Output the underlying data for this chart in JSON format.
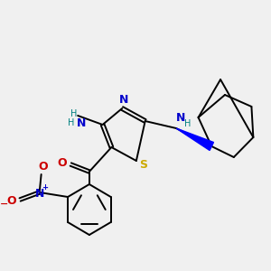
{
  "bg_color": "#f0f0f0",
  "fig_size": [
    3.0,
    3.0
  ],
  "dpi": 100,
  "atom_colors": {
    "N": "#0000cc",
    "S": "#ccaa00",
    "O": "#cc0000",
    "C": "#000000",
    "H": "#008080"
  }
}
